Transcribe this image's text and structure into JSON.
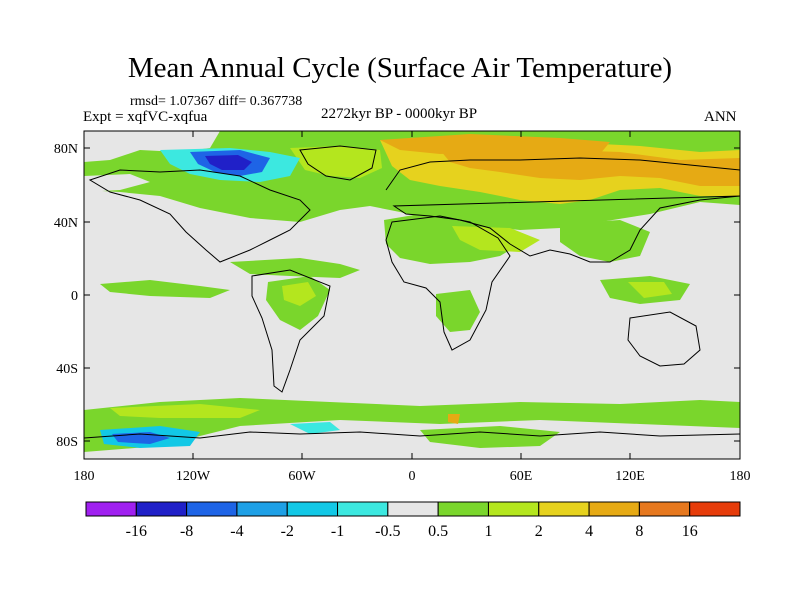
{
  "title": "Mean Annual Cycle (Surface Air Temperature)",
  "stats": "rmsd= 1.07367 diff= 0.367738",
  "experiment": "Expt = xqfVC-xqfua",
  "period": "2272kyr BP - 0000kyr BP",
  "season": "ANN",
  "lat_labels": [
    "80N",
    "40N",
    "0",
    "40S",
    "80S"
  ],
  "lon_labels": [
    "180",
    "120W",
    "60W",
    "0",
    "60E",
    "120E",
    "180"
  ],
  "colorbar": {
    "colors": [
      "#a020f0",
      "#2020c8",
      "#1e64e6",
      "#1ea0e6",
      "#12c8e6",
      "#3ce8e0",
      "#e6e6e6",
      "#7ad62c",
      "#b4e61e",
      "#e6d21e",
      "#e6aa14",
      "#e6781e",
      "#e63c0a"
    ],
    "labels": [
      "-16",
      "-8",
      "-4",
      "-2",
      "-1",
      "-0.5",
      "0.5",
      "1",
      "2",
      "4",
      "8",
      "16"
    ]
  }
}
